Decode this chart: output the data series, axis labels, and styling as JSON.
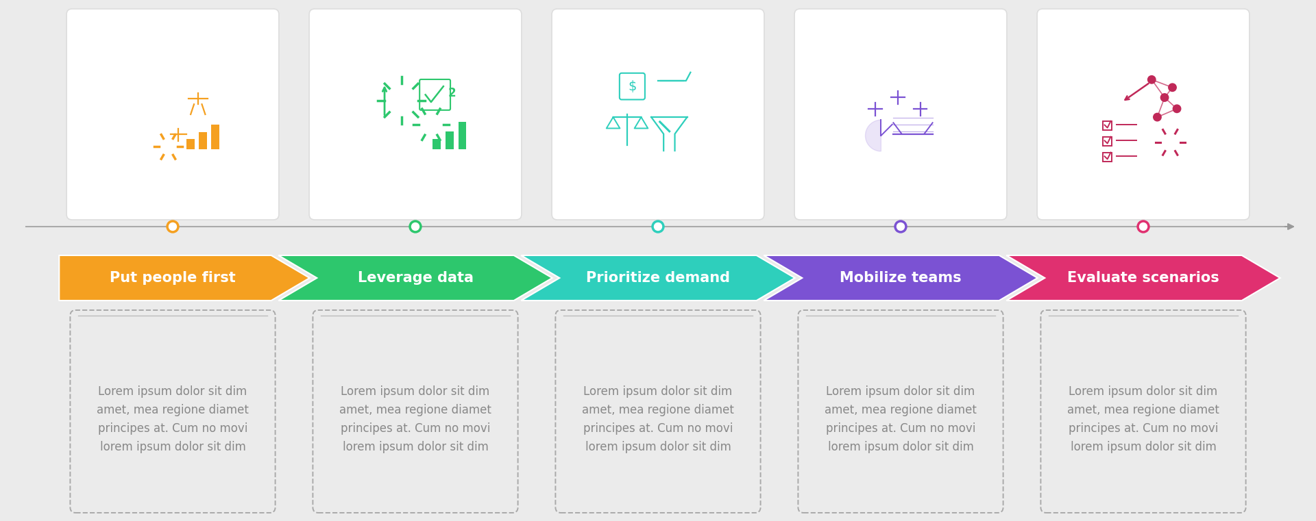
{
  "background_color": "#ebebeb",
  "steps": [
    {
      "label": "Put people first",
      "color": "#F5A020",
      "dot_color": "#F5A020",
      "icon_color": "#F5A020"
    },
    {
      "label": "Leverage data",
      "color": "#2DC76D",
      "dot_color": "#2DC76D",
      "icon_color": "#2DC76D"
    },
    {
      "label": "Prioritize demand",
      "color": "#2ECFBC",
      "dot_color": "#2ECFBC",
      "icon_color": "#2ECFBC"
    },
    {
      "label": "Mobilize teams",
      "color": "#7B52D3",
      "dot_color": "#7B52D3",
      "icon_color": "#7B52D3"
    },
    {
      "label": "Evaluate scenarios",
      "color": "#E03070",
      "dot_color": "#E03070",
      "icon_color": "#C02858"
    }
  ],
  "body_text": "Lorem ipsum dolor sit dim\namet, mea regione diamet\nprincipes at. Cum no movi\nlorem ipsum dolor sit dim",
  "title_fontsize": 15,
  "body_fontsize": 12,
  "text_color": "#888888",
  "line_color": "#aaaaaa",
  "white": "#ffffff"
}
